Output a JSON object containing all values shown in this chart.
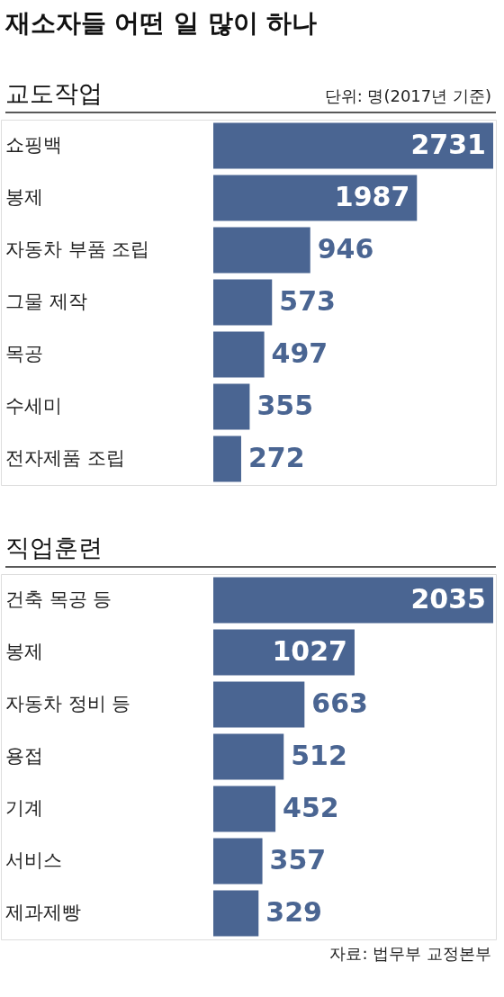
{
  "chart_data": [
    {
      "type": "bar",
      "orientation": "horizontal",
      "title": "재소자들 어떤 일 많이 하나",
      "subtitle": "교도작업",
      "annotations": [
        "단위: 명(2017년 기준)"
      ],
      "categories": [
        "쇼핑백",
        "봉제",
        "자동차 부품 조립",
        "그물 제작",
        "목공",
        "수세미",
        "전자제품 조립"
      ],
      "values": [
        2731,
        1987,
        946,
        573,
        497,
        355,
        272
      ],
      "color": "#4a6592",
      "data_labels": true
    },
    {
      "type": "bar",
      "orientation": "horizontal",
      "subtitle": "직업훈련",
      "annotations": [
        "자료: 법무부 교정본부"
      ],
      "categories": [
        "건축 목공 등",
        "봉제",
        "자동차 정비 등",
        "용접",
        "기계",
        "서비스",
        "제과제빵"
      ],
      "values": [
        2035,
        1027,
        663,
        512,
        452,
        357,
        329
      ],
      "color": "#4a6592",
      "data_labels": true
    }
  ]
}
